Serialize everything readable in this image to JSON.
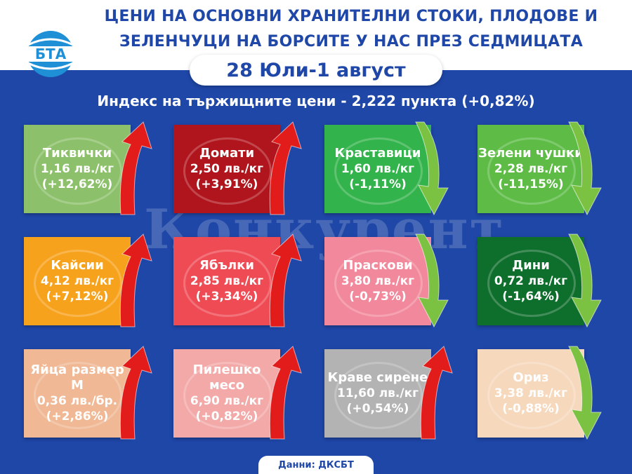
{
  "header": {
    "title_line1": "ЦЕНИ НА ОСНОВНИ ХРАНИТЕЛНИ СТОКИ, ПЛОДОВЕ И",
    "title_line2": "ЗЕЛЕНЧУЦИ НА БОРСИТЕ У НАС ПРЕЗ СЕДМИЦАТА",
    "date": "28 Юли-1 август",
    "logo_text": "БТА"
  },
  "index_line": "Индекс на тържищните цени - 2,222 пункта (+0,82%)",
  "watermark": "Конкурент",
  "colors": {
    "background": "#1f47a8",
    "up_arrow": "#e21b1b",
    "down_arrow": "#7cc242"
  },
  "cards": [
    {
      "name": "Тиквички",
      "price": "1,16 лв./кг",
      "change": "(+12,62%)",
      "direction": "up",
      "color": "#8cc06b",
      "icon": "zucchini-icon"
    },
    {
      "name": "Домати",
      "price": "2,50 лв./кг",
      "change": "(+3,91%)",
      "direction": "up",
      "color": "#b0141c",
      "icon": "tomato-icon"
    },
    {
      "name": "Краставици",
      "price": "1,60 лв./кг",
      "change": "(-1,11%)",
      "direction": "down",
      "color": "#32b34b",
      "icon": "cucumber-icon"
    },
    {
      "name": "Зелени чушки",
      "price": "2,28 лв./кг",
      "change": "(-11,15%)",
      "direction": "down",
      "color": "#5dbb46",
      "icon": "pepper-icon"
    },
    {
      "name": "Кайсии",
      "price": "4,12 лв./кг",
      "change": "(+7,12%)",
      "direction": "up",
      "color": "#f7a21c",
      "icon": "apricot-icon"
    },
    {
      "name": "Ябълки",
      "price": "2,85 лв./кг",
      "change": "(+3,34%)",
      "direction": "up",
      "color": "#ef4b55",
      "icon": "apple-icon"
    },
    {
      "name": "Праскови",
      "price": "3,80 лв./кг",
      "change": "(-0,73%)",
      "direction": "down",
      "color": "#f2889b",
      "icon": "peach-icon"
    },
    {
      "name": "Дини",
      "price": "0,72 лв./кг",
      "change": "(-1,64%)",
      "direction": "down",
      "color": "#0e6e2c",
      "icon": "watermelon-icon"
    },
    {
      "name": "Яйца размер М",
      "price": "0,36 лв./бр.",
      "change": "(+2,86%)",
      "direction": "up",
      "color": "#f0b894",
      "icon": "eggs-icon"
    },
    {
      "name": "Пилешко месо",
      "price": "6,90 лв./кг",
      "change": "(+0,82%)",
      "direction": "up",
      "color": "#f2a9a8",
      "icon": "chicken-icon"
    },
    {
      "name": "Краве сирене",
      "price": "11,60 лв./кг",
      "change": "(+0,54%)",
      "direction": "up",
      "color": "#b3b3b3",
      "icon": "cheese-icon"
    },
    {
      "name": "Ориз",
      "price": "3,38 лв./кг",
      "change": "(-0,88%)",
      "direction": "down",
      "color": "#f6d8bd",
      "icon": "rice-icon"
    }
  ],
  "source": "Данни: ДКСБТ"
}
